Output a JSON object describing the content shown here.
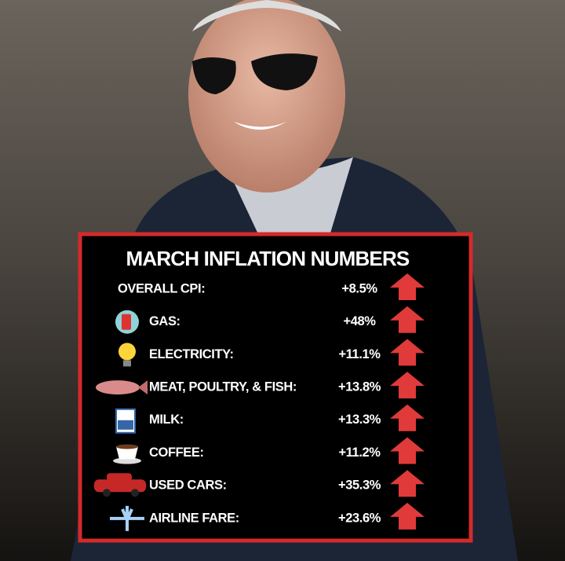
{
  "title": "MARCH INFLATION NUMBERS",
  "rows": [
    {
      "label": "OVERALL CPI:",
      "value": "+8.5%"
    },
    {
      "label": "GAS:",
      "value": "+48%"
    },
    {
      "label": "ELECTRICITY:",
      "value": "+11.1%"
    },
    {
      "label": "MEAT, POULTRY, & FISH:",
      "value": "+13.8%"
    },
    {
      "label": "MILK:",
      "value": "+13.3%"
    },
    {
      "label": "COFFEE:",
      "value": "+11.2%"
    },
    {
      "label": "USED CARS:",
      "value": "+35.3%"
    },
    {
      "label": "AIRLINE FARE:",
      "value": "+23.6%"
    }
  ]
}
